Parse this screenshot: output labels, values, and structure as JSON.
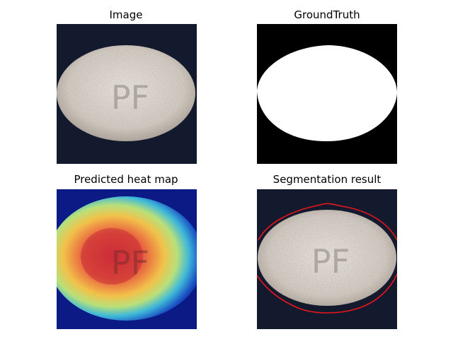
{
  "figure": {
    "panels": [
      {
        "title": "Image"
      },
      {
        "title": "GroundTruth"
      },
      {
        "title": "Predicted heat map"
      },
      {
        "title": "Segmentation result"
      }
    ],
    "tablet_marking": "PF",
    "colors": {
      "background": "#141a2e",
      "tablet": "#d2cfc8",
      "mask_fg": "#ffffff",
      "mask_bg": "#000000",
      "contour": "#e8161b"
    }
  }
}
